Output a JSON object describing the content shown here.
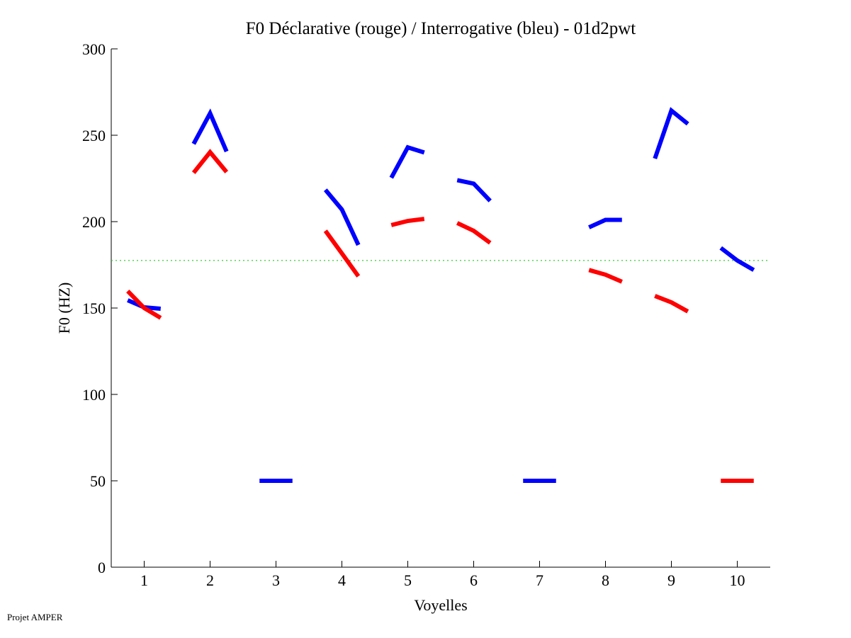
{
  "chart_data": {
    "type": "line",
    "title": "F0 Déclarative (rouge) / Interrogative (bleu) - 01d2pwt",
    "xlabel": "Voyelles",
    "ylabel": "F0 (HZ)",
    "xlim": [
      0.5,
      10.5
    ],
    "ylim": [
      0,
      300
    ],
    "xticks": [
      "1",
      "2",
      "3",
      "4",
      "5",
      "6",
      "7",
      "8",
      "9",
      "10"
    ],
    "yticks": [
      "0",
      "50",
      "100",
      "150",
      "200",
      "250",
      "300"
    ],
    "grid": false,
    "reference_line": {
      "y": 177.5,
      "color": "#33cc33",
      "style": "dotted"
    },
    "series": [
      {
        "name": "Interrogative (bleu)",
        "color": "#0000ff",
        "segments": [
          {
            "vowel": 1,
            "values": [
              154.5,
              150.4,
              149.6
            ]
          },
          {
            "vowel": 2,
            "values": [
              245,
              262.7,
              240.6
            ]
          },
          {
            "vowel": 3,
            "values": [
              50,
              50,
              50
            ]
          },
          {
            "vowel": 4,
            "values": [
              218.4,
              207,
              186.5
            ]
          },
          {
            "vowel": 5,
            "values": [
              225.4,
              243,
              240
            ]
          },
          {
            "vowel": 6,
            "values": [
              224,
              222,
              212
            ]
          },
          {
            "vowel": 7,
            "values": [
              50,
              50,
              50
            ]
          },
          {
            "vowel": 8,
            "values": [
              196.7,
              201,
              201
            ]
          },
          {
            "vowel": 9,
            "values": [
              236.5,
              264.3,
              256.6
            ]
          },
          {
            "vowel": 10,
            "values": [
              184.8,
              177.5,
              172
            ]
          }
        ]
      },
      {
        "name": "Déclarative (rouge)",
        "color": "#ff0000",
        "segments": [
          {
            "vowel": 1,
            "values": [
              159.8,
              150,
              144.3
            ]
          },
          {
            "vowel": 2,
            "values": [
              228.3,
              240.2,
              228.7
            ]
          },
          {
            "vowel": 4,
            "values": [
              194.7,
              181.6,
              168.4
            ]
          },
          {
            "vowel": 5,
            "values": [
              198,
              200.4,
              201.6
            ]
          },
          {
            "vowel": 6,
            "values": [
              199.2,
              194.7,
              187.7
            ]
          },
          {
            "vowel": 8,
            "values": [
              172,
              169.3,
              165.2
            ]
          },
          {
            "vowel": 9,
            "values": [
              157,
              153.3,
              148
            ]
          },
          {
            "vowel": 10,
            "values": [
              50,
              50,
              50
            ]
          }
        ]
      }
    ]
  },
  "footer": "Projet AMPER"
}
